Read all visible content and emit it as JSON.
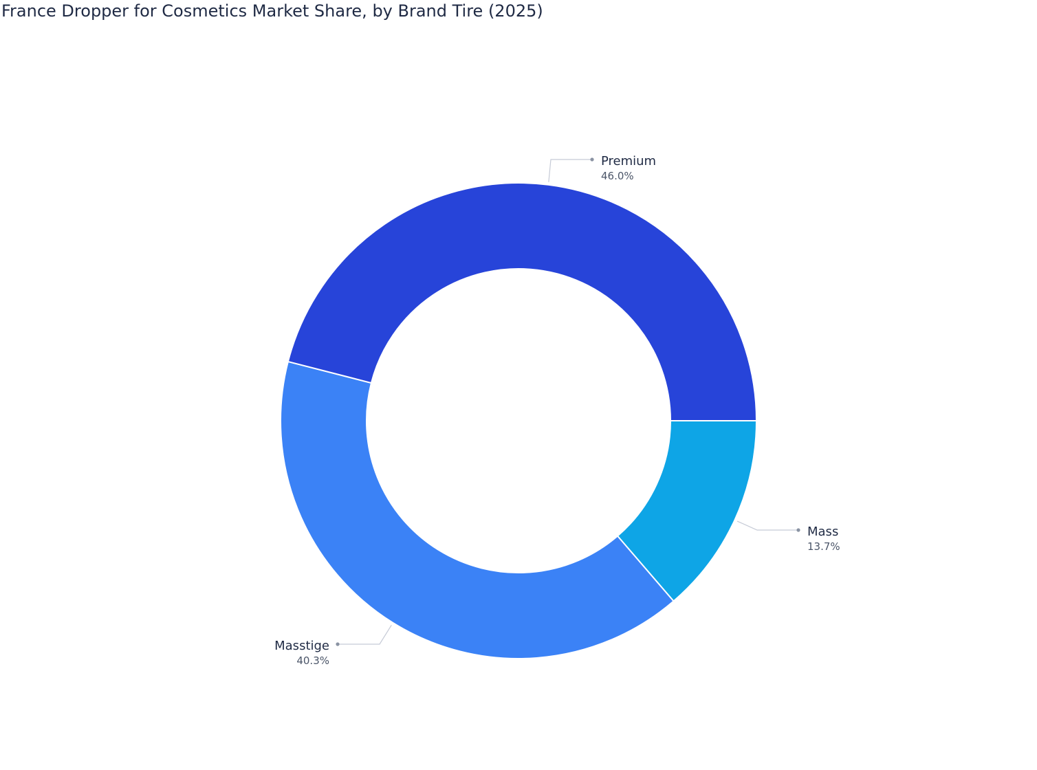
{
  "chart_data": {
    "type": "pie",
    "title": "France Dropper for Cosmetics Market Share, by Brand Tire (2025)",
    "hole": true,
    "slices": [
      {
        "label": "Mass",
        "value": 13.7,
        "value_label": "13.7%",
        "color": "#0ea5e6"
      },
      {
        "label": "Masstige",
        "value": 40.3,
        "value_label": "40.3%",
        "color": "#3b82f6"
      },
      {
        "label": "Premium",
        "value": 46.0,
        "value_label": "46.0%",
        "color": "#2744d9"
      }
    ],
    "leader_line_color": "#c5cad6",
    "leader_dot_color": "#8a93a3"
  }
}
